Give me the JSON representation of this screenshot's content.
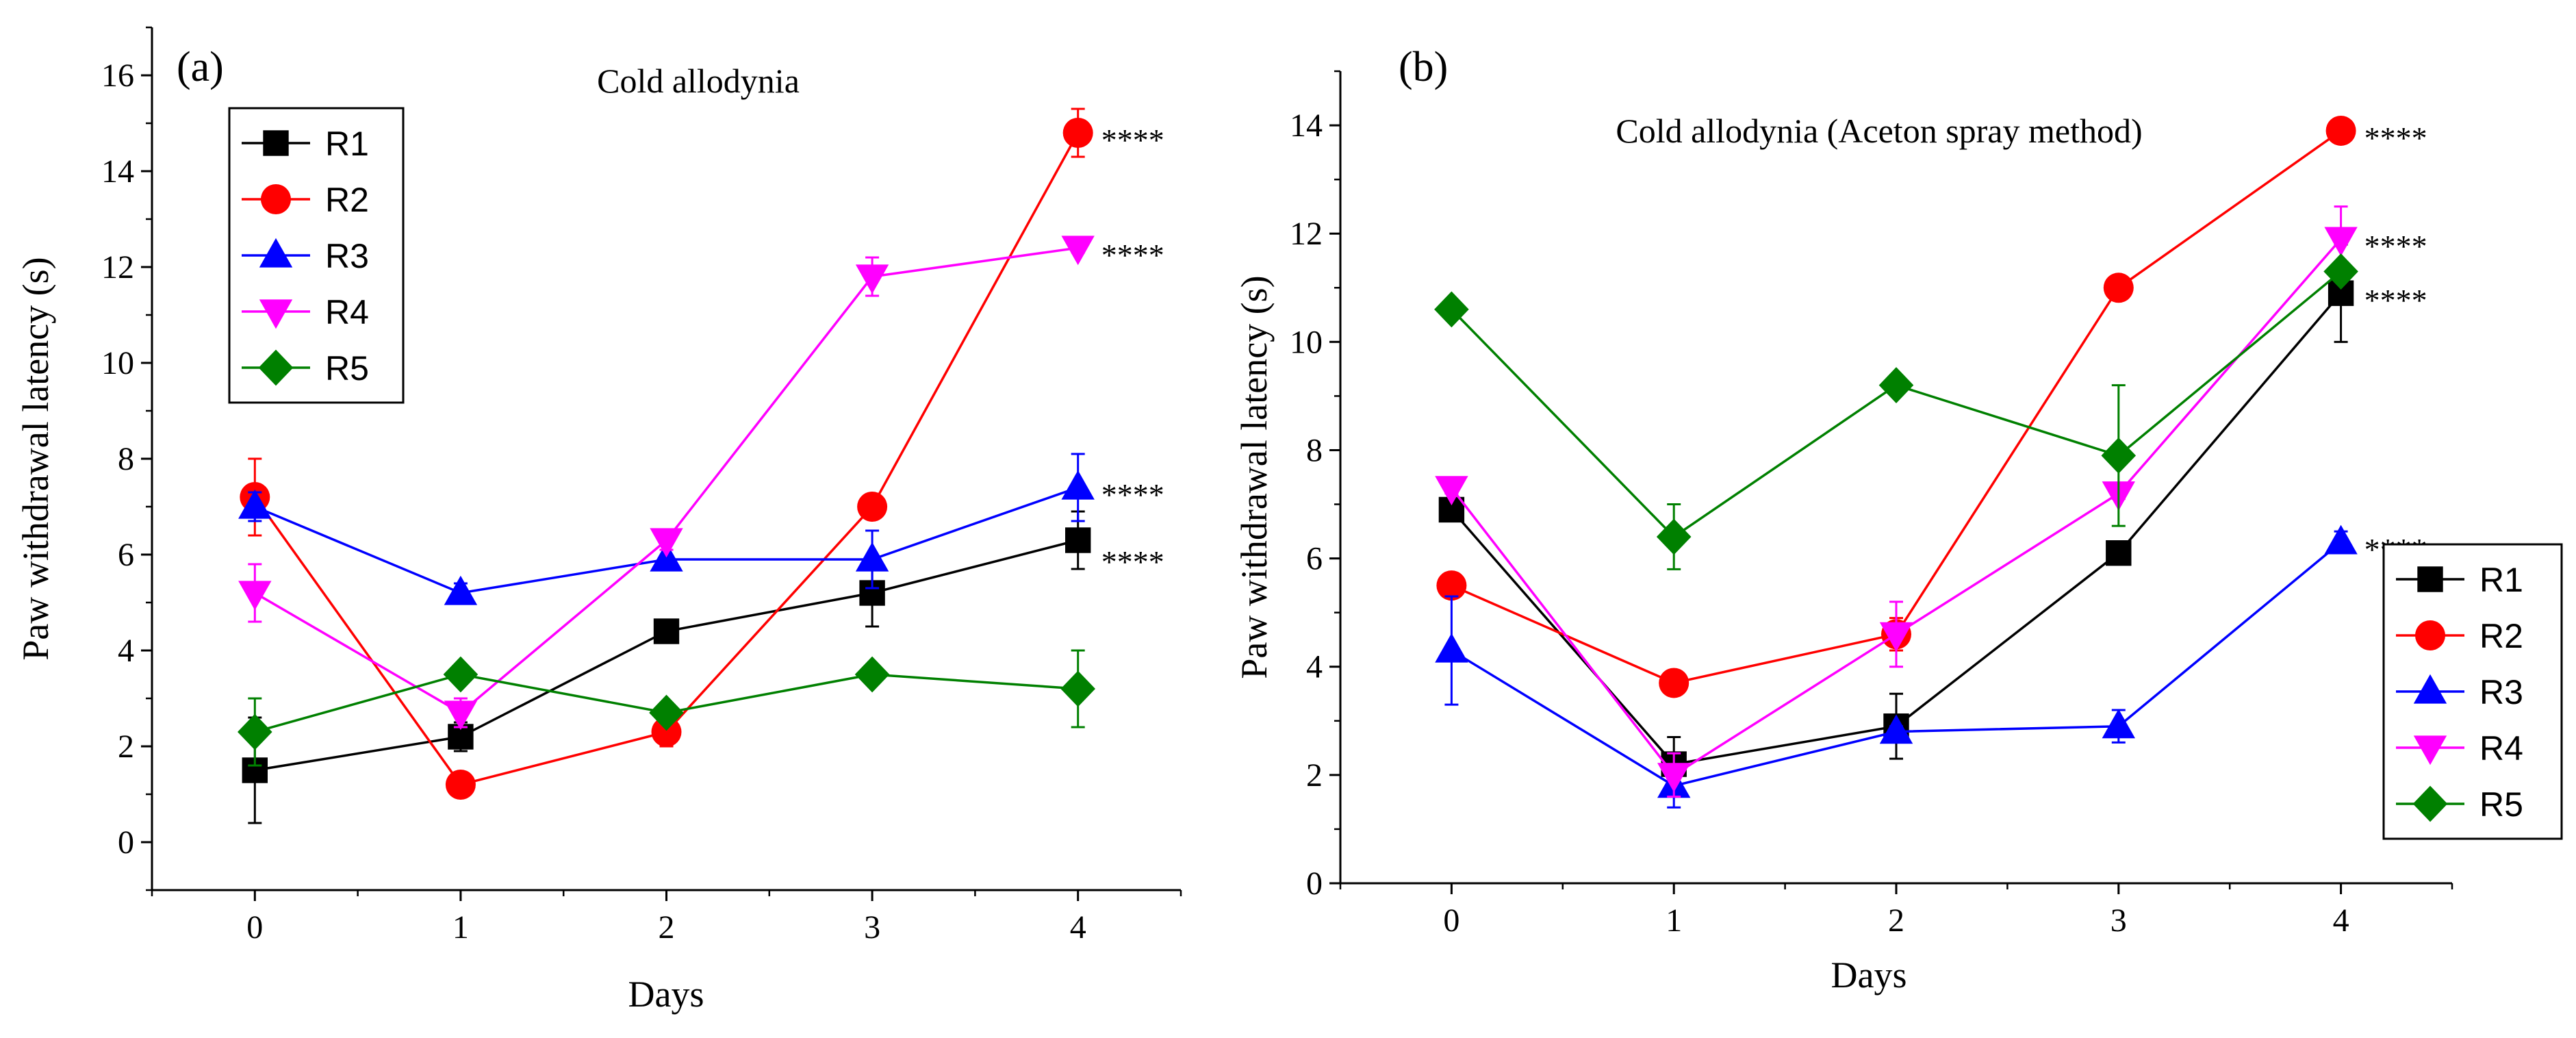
{
  "chart_data": [
    {
      "type": "line",
      "panel_label": "(a)",
      "title": "Cold allodynia",
      "xlabel": "Days",
      "ylabel": "Paw withdrawal latency (s)",
      "x": [
        0,
        1,
        2,
        3,
        4
      ],
      "xlim": [
        -0.5,
        4.5
      ],
      "ylim": [
        -1,
        17
      ],
      "yticks": [
        0,
        2,
        4,
        6,
        8,
        10,
        12,
        14,
        16
      ],
      "legend_position": "top-left",
      "series": [
        {
          "name": "R1",
          "color": "#000000",
          "marker": "square",
          "values": [
            1.5,
            2.2,
            4.4,
            5.2,
            6.3
          ],
          "errors": [
            1.1,
            0.3,
            0.1,
            0.7,
            0.6
          ]
        },
        {
          "name": "R2",
          "color": "#ff0000",
          "marker": "circle",
          "values": [
            7.2,
            1.2,
            2.3,
            7.0,
            14.8
          ],
          "errors": [
            0.8,
            0.1,
            0.3,
            0.1,
            0.5
          ]
        },
        {
          "name": "R3",
          "color": "#0000ff",
          "marker": "triangle-up",
          "values": [
            7.0,
            5.2,
            5.9,
            5.9,
            7.4
          ],
          "errors": [
            0.3,
            0.2,
            0.2,
            0.6,
            0.7
          ]
        },
        {
          "name": "R4",
          "color": "#ff00ff",
          "marker": "triangle-down",
          "values": [
            5.2,
            2.7,
            6.3,
            11.8,
            12.4
          ],
          "errors": [
            0.6,
            0.3,
            0.2,
            0.4,
            0.1
          ]
        },
        {
          "name": "R5",
          "color": "#008000",
          "marker": "diamond",
          "values": [
            2.3,
            3.5,
            2.7,
            3.5,
            3.2
          ],
          "errors": [
            0.7,
            0.1,
            0.1,
            0.1,
            0.8
          ]
        }
      ],
      "annotations": [
        {
          "text": "****",
          "x": 4,
          "y": 14.8
        },
        {
          "text": "****",
          "x": 4,
          "y": 12.4
        },
        {
          "text": "****",
          "x": 4,
          "y": 7.4
        },
        {
          "text": "****",
          "x": 4,
          "y": 6.0
        }
      ]
    },
    {
      "type": "line",
      "panel_label": "(b)",
      "title": "Cold allodynia (Aceton spray method)",
      "xlabel": "Days",
      "ylabel": "Paw withdrawal latency (s)",
      "x": [
        0,
        1,
        2,
        3,
        4
      ],
      "xlim": [
        -0.5,
        4.5
      ],
      "ylim": [
        0,
        15
      ],
      "yticks": [
        0,
        2,
        4,
        6,
        8,
        10,
        12,
        14
      ],
      "legend_position": "right",
      "series": [
        {
          "name": "R1",
          "color": "#000000",
          "marker": "square",
          "values": [
            6.9,
            2.2,
            2.9,
            6.1,
            10.9
          ],
          "errors": [
            0.1,
            0.5,
            0.6,
            0.1,
            0.9
          ]
        },
        {
          "name": "R2",
          "color": "#ff0000",
          "marker": "circle",
          "values": [
            5.5,
            3.7,
            4.6,
            11.0,
            13.9
          ],
          "errors": [
            0.1,
            0.1,
            0.3,
            0.1,
            0.1
          ]
        },
        {
          "name": "R3",
          "color": "#0000ff",
          "marker": "triangle-up",
          "values": [
            4.3,
            1.8,
            2.8,
            2.9,
            6.3
          ],
          "errors": [
            1.0,
            0.4,
            0.1,
            0.3,
            0.2
          ]
        },
        {
          "name": "R4",
          "color": "#ff00ff",
          "marker": "triangle-down",
          "values": [
            7.3,
            2.0,
            4.6,
            7.2,
            11.9
          ],
          "errors": [
            0.1,
            0.4,
            0.6,
            0.1,
            0.6
          ]
        },
        {
          "name": "R5",
          "color": "#008000",
          "marker": "diamond",
          "values": [
            10.6,
            6.4,
            9.2,
            7.9,
            11.3
          ],
          "errors": [
            0.1,
            0.6,
            0.1,
            1.3,
            0.1
          ]
        }
      ],
      "annotations": [
        {
          "text": "****",
          "x": 4,
          "y": 13.9
        },
        {
          "text": "****",
          "x": 4,
          "y": 11.9
        },
        {
          "text": "****",
          "x": 4,
          "y": 10.9
        },
        {
          "text": "****",
          "x": 4,
          "y": 6.3
        }
      ]
    }
  ]
}
